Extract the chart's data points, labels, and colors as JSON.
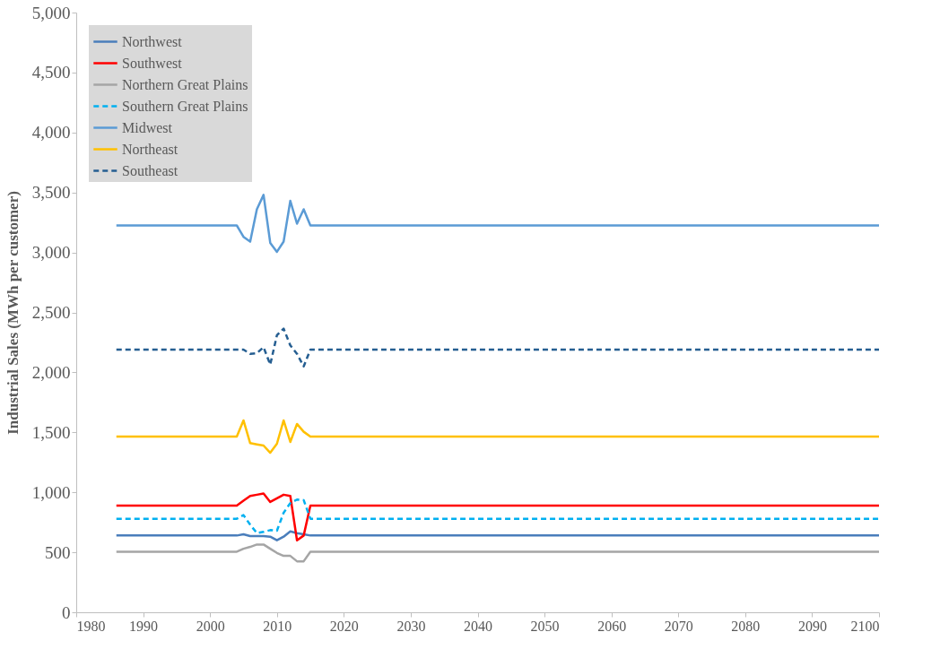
{
  "chart_data": {
    "type": "line",
    "ylabel": "Industrial Sales (MWh per customer)",
    "x": [
      1986,
      2004,
      2005,
      2006,
      2007,
      2008,
      2009,
      2010,
      2011,
      2012,
      2013,
      2014,
      2015,
      2100
    ],
    "series": [
      {
        "name": "Northwest",
        "color": "#4a7ebb",
        "line_style": "solid",
        "values": [
          640,
          640,
          650,
          635,
          635,
          635,
          630,
          600,
          630,
          675,
          660,
          650,
          640,
          640
        ]
      },
      {
        "name": "Southwest",
        "color": "#ff0000",
        "line_style": "solid",
        "values": [
          890,
          890,
          930,
          970,
          980,
          990,
          920,
          950,
          980,
          970,
          600,
          640,
          890,
          890
        ]
      },
      {
        "name": "Northern Great Plains",
        "color": "#a5a5a5",
        "line_style": "solid",
        "values": [
          505,
          505,
          530,
          545,
          565,
          565,
          530,
          495,
          470,
          470,
          425,
          425,
          505,
          505
        ]
      },
      {
        "name": "Southern Great Plains",
        "color": "#00b0f0",
        "line_style": "dashed",
        "values": [
          780,
          780,
          810,
          730,
          660,
          670,
          685,
          680,
          830,
          910,
          940,
          935,
          780,
          780
        ]
      },
      {
        "name": "Midwest",
        "color": "#5b9bd5",
        "line_style": "solid",
        "values": [
          3225,
          3225,
          3130,
          3090,
          3360,
          3480,
          3080,
          3005,
          3090,
          3430,
          3240,
          3360,
          3225,
          3225
        ]
      },
      {
        "name": "Northeast",
        "color": "#ffc000",
        "line_style": "solid",
        "values": [
          1465,
          1465,
          1600,
          1410,
          1400,
          1390,
          1330,
          1405,
          1600,
          1420,
          1570,
          1505,
          1465,
          1465
        ]
      },
      {
        "name": "Southeast",
        "color": "#255e91",
        "line_style": "dashed",
        "values": [
          2190,
          2190,
          2190,
          2155,
          2160,
          2210,
          2065,
          2310,
          2365,
          2225,
          2155,
          2050,
          2190,
          2190
        ]
      }
    ],
    "xlim": [
      1980,
      2100
    ],
    "xticks": [
      1980,
      1990,
      2000,
      2010,
      2020,
      2030,
      2040,
      2050,
      2060,
      2070,
      2080,
      2090,
      2100
    ],
    "ylim": [
      0,
      5000
    ],
    "yticks": [
      0,
      500,
      {
        "value": 1000,
        "label": "1,000"
      },
      {
        "value": 1500,
        "label": "1,500"
      },
      {
        "value": 2000,
        "label": "2,000"
      },
      {
        "value": 2500,
        "label": "2,500"
      },
      {
        "value": 3000,
        "label": "3,000"
      },
      {
        "value": 3500,
        "label": "3,500"
      },
      {
        "value": 4000,
        "label": "4,000"
      },
      {
        "value": 4500,
        "label": "4,500"
      },
      {
        "value": 5000,
        "label": "5,000"
      }
    ],
    "grid": false,
    "legend": "top left"
  }
}
